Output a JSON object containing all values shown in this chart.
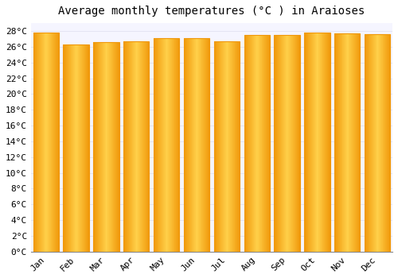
{
  "title": "Average monthly temperatures (°C ) in Araioses",
  "months": [
    "Jan",
    "Feb",
    "Mar",
    "Apr",
    "May",
    "Jun",
    "Jul",
    "Aug",
    "Sep",
    "Oct",
    "Nov",
    "Dec"
  ],
  "values": [
    27.8,
    26.3,
    26.6,
    26.7,
    27.1,
    27.1,
    26.7,
    27.5,
    27.5,
    27.8,
    27.7,
    27.6
  ],
  "bar_color_center": "#FFD04A",
  "bar_color_edge": "#F0980A",
  "background_color": "#FFFFFF",
  "plot_bg_color": "#F5F5FF",
  "grid_color": "#DDDDEE",
  "ylim": [
    0,
    29
  ],
  "yticks": [
    0,
    2,
    4,
    6,
    8,
    10,
    12,
    14,
    16,
    18,
    20,
    22,
    24,
    26,
    28
  ],
  "title_fontsize": 10,
  "tick_fontsize": 8,
  "bar_width": 0.85
}
